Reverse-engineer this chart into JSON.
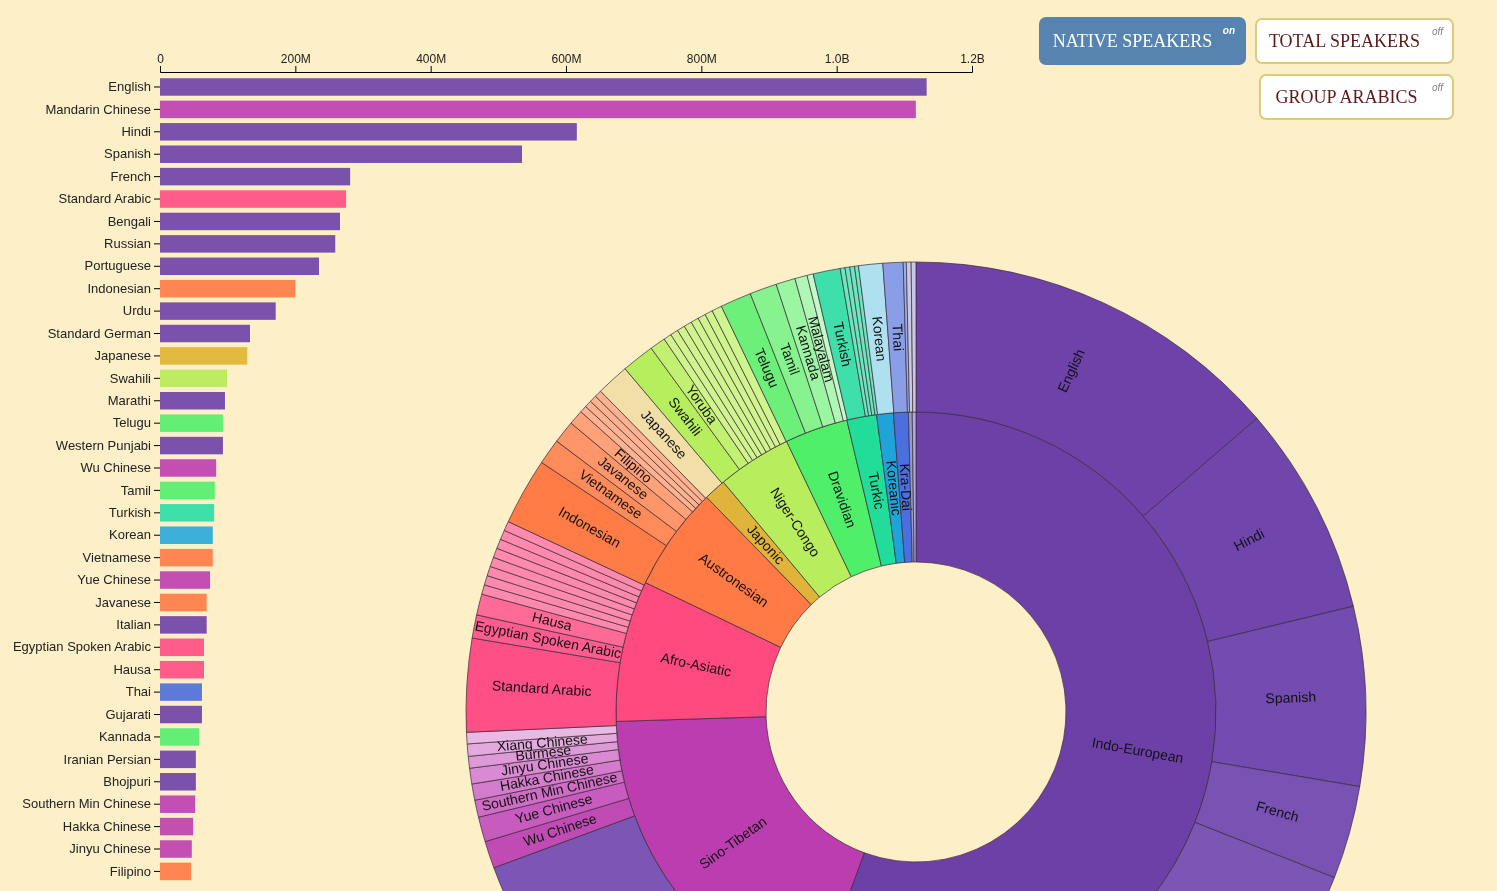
{
  "chart_data": [
    {
      "type": "bar",
      "orientation": "horizontal",
      "categories": [
        "English",
        "Mandarin Chinese",
        "Hindi",
        "Spanish",
        "French",
        "Standard Arabic",
        "Bengali",
        "Russian",
        "Portuguese",
        "Indonesian",
        "Urdu",
        "Standard German",
        "Japanese",
        "Swahili",
        "Marathi",
        "Telugu",
        "Western Punjabi",
        "Wu Chinese",
        "Tamil",
        "Turkish",
        "Korean",
        "Vietnamese",
        "Yue Chinese",
        "Javanese",
        "Italian",
        "Egyptian Spoken Arabic",
        "Hausa",
        "Thai",
        "Gujarati",
        "Kannada",
        "Iranian Persian",
        "Bhojpuri",
        "Southern Min Chinese",
        "Hakka Chinese",
        "Jinyu Chinese",
        "Filipino"
      ],
      "values": [
        1133000000,
        1117000000,
        616000000,
        535000000,
        281000000,
        275000000,
        266000000,
        259000000,
        235000000,
        200000000,
        171000000,
        133000000,
        129000000,
        99000000,
        96000000,
        93000000,
        93000000,
        83000000,
        81000000,
        80000000,
        78000000,
        78000000,
        74000000,
        69000000,
        69000000,
        65000000,
        65000000,
        62000000,
        62000000,
        58000000,
        53000000,
        53000000,
        52000000,
        49000000,
        47000000,
        46000000
      ],
      "colors": [
        "#7b52ab",
        "#c44fb3",
        "#7b52ab",
        "#7b52ab",
        "#7b52ab",
        "#ff5c8a",
        "#7b52ab",
        "#7b52ab",
        "#7b52ab",
        "#ff8552",
        "#7b52ab",
        "#7b52ab",
        "#e2ba3f",
        "#bdec60",
        "#7b52ab",
        "#63ef76",
        "#7b52ab",
        "#c44fb3",
        "#63ef76",
        "#3de0a8",
        "#3cb0d8",
        "#ff8552",
        "#c44fb3",
        "#ff8552",
        "#7b52ab",
        "#ff5c8a",
        "#ff5c8a",
        "#5d7ad8",
        "#7b52ab",
        "#63ef76",
        "#7b52ab",
        "#7b52ab",
        "#c44fb3",
        "#c44fb3",
        "#c44fb3",
        "#ff8552"
      ],
      "xlim": [
        0,
        1200000000
      ],
      "xticks": [
        0,
        {
          "value": 200000000,
          "label": "200M"
        },
        {
          "value": 400000000,
          "label": "400M"
        },
        {
          "value": 600000000,
          "label": "600M"
        },
        {
          "value": 800000000,
          "label": "800M"
        },
        {
          "value": 1000000000,
          "label": "1.0B"
        },
        {
          "value": 1200000000,
          "label": "1.2B"
        }
      ],
      "annotations": [
        "NATIVE SPEAKERS",
        "on",
        "TOTAL SPEAKERS",
        "off",
        "GROUP ARABICS",
        "off"
      ]
    },
    {
      "type": "donut",
      "categories": [
        "Indo-European",
        "Sino-Tibetan",
        "Afro-Asiatic",
        "Austronesian",
        "Japonic",
        "Niger-Congo",
        "Dravidian",
        "Turkic",
        "Koreanic",
        "Kra-Dai",
        null,
        null
      ],
      "values": [
        55.6,
        18.9,
        7.6,
        5.6,
        1.2,
        4.0,
        3.4,
        1.6,
        0.9,
        0.8,
        0.2,
        0.2
      ],
      "colors": [
        "#6d40a8",
        "#bb3db0",
        "#ff4a80",
        "#ff7a45",
        "#e0b33a",
        "#b8ee5e",
        "#4fef6a",
        "#22dd99",
        "#1fa3d8",
        "#4b6fdf",
        "#9999cc",
        "#aaaadd"
      ]
    },
    {
      "type": "donut",
      "categories": [
        "English",
        "Hindi",
        "Spanish",
        "French",
        null,
        "Wu Chinese",
        "Yue Chinese",
        "Southern Min Chinese",
        "Hakka Chinese",
        "Jinyu Chinese",
        "Burmese",
        "Xiang Chinese",
        null,
        "Standard Arabic",
        "Egyptian Spoken Arabic",
        "Hausa",
        null,
        null,
        null,
        null,
        null,
        null,
        null,
        null,
        "Indonesian",
        "Vietnamese",
        "Javanese",
        "Filipino",
        null,
        null,
        null,
        null,
        "Japanese",
        "Swahili",
        "Yoruba",
        null,
        null,
        null,
        null,
        null,
        null,
        null,
        null,
        "Telugu",
        "Tamil",
        "Kannada",
        "Malayalam",
        null,
        "Turkish",
        null,
        null,
        null,
        null,
        "Korean",
        "Thai",
        null,
        null,
        null
      ],
      "values": [
        13.61,
        7.5,
        6.39,
        3.33,
        38.17,
        0.97,
        0.89,
        0.61,
        0.58,
        0.56,
        0.42,
        0.44,
        0.41,
        3.33,
        0.83,
        0.75,
        0.34,
        0.34,
        0.34,
        0.34,
        0.34,
        0.34,
        0.34,
        0.34,
        2.39,
        0.92,
        0.81,
        0.53,
        0.25,
        0.25,
        0.25,
        0.25,
        1.17,
        1.17,
        0.56,
        0.28,
        0.28,
        0.28,
        0.28,
        0.28,
        0.28,
        0.28,
        0.36,
        1.11,
        0.97,
        0.69,
        0.44,
        0.22,
        0.97,
        0.17,
        0.17,
        0.17,
        0.14,
        0.86,
        0.72,
        0.11,
        0.17,
        0.17
      ],
      "colors": [
        "#6f42aa",
        "#7046ad",
        "#744bb0",
        "#7a52b3",
        "#7c55b5",
        "#c04bb5",
        "#c85cbe",
        "#cf6dc6",
        "#d47ccc",
        "#d98ad2",
        "#de9ad7",
        "#e3aadd",
        "#e8bae3",
        "#ff4f87",
        "#ff5d8f",
        "#ff6a97",
        "#ff8aad",
        "#ff8aad",
        "#ff8aad",
        "#ff8aad",
        "#ff8aad",
        "#ff8aad",
        "#ff8aad",
        "#ff8aad",
        "#ff7c47",
        "#ff8a5a",
        "#ff966a",
        "#ffa27a",
        "#ffb290",
        "#ffb290",
        "#ffb290",
        "#ffb290",
        "#f2dfa8",
        "#b6ee5e",
        "#c2f172",
        "#d0f48e",
        "#d0f48e",
        "#d0f48e",
        "#d0f48e",
        "#d0f48e",
        "#d0f48e",
        "#d0f48e",
        "#d0f48e",
        "#6df07a",
        "#86f38f",
        "#9cf5a3",
        "#b0f7b6",
        "#c4f9c8",
        "#3edfaa",
        "#6ae7bf",
        "#6ae7bf",
        "#6ae7bf",
        "#6ae7bf",
        "#aee0f0",
        "#8a9ee8",
        "#a0aee8",
        "#c8c8e4",
        "#c8c8e4"
      ]
    }
  ]
}
